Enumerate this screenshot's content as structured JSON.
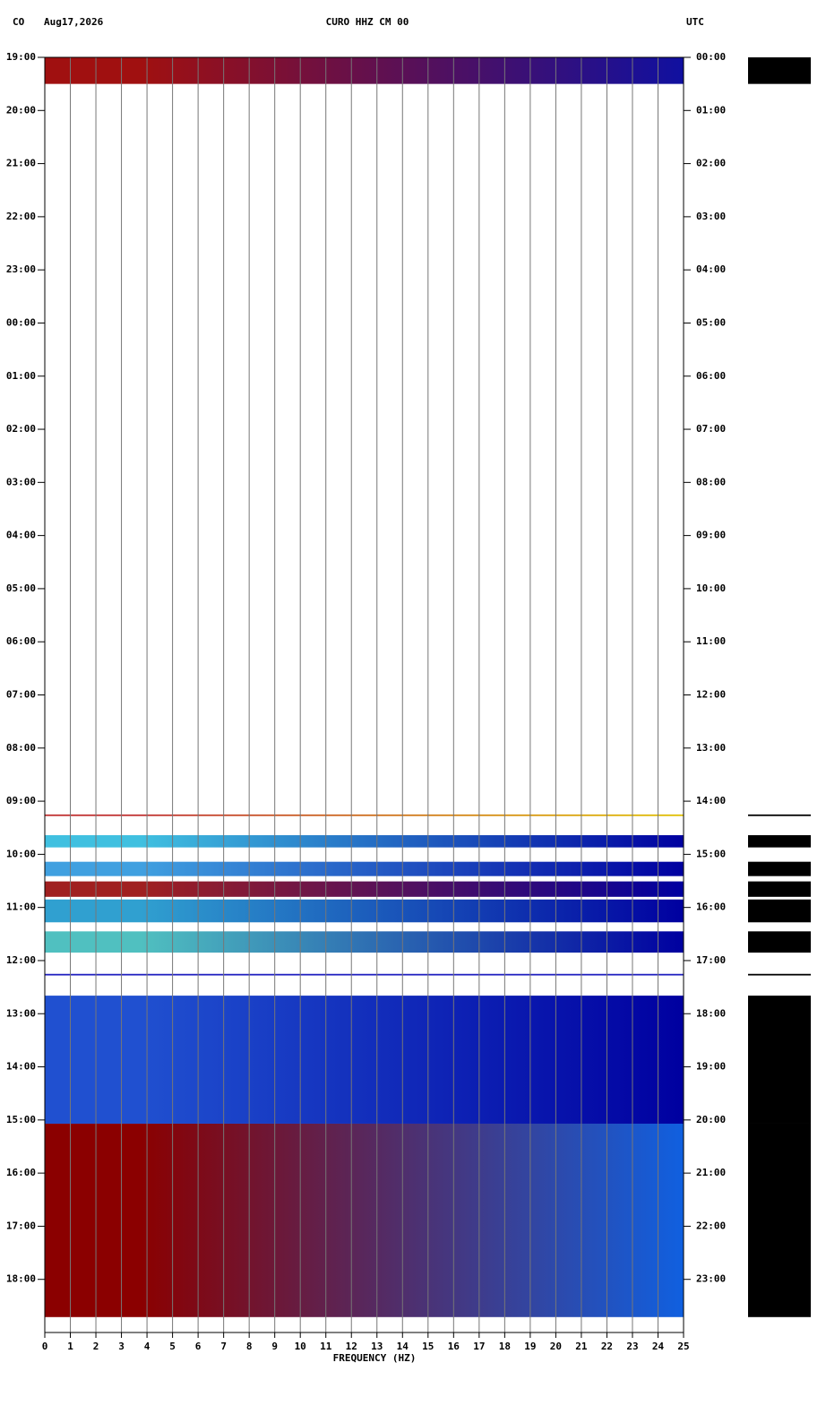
{
  "chart_data": {
    "type": "spectrogram",
    "network": "CO",
    "date": "Aug17,2026",
    "title": "CURO HHZ CM 00",
    "timezone": "UTC",
    "xlabel": "FREQUENCY (HZ)",
    "xlim": [
      0,
      25
    ],
    "xticks": [
      0,
      1,
      2,
      3,
      4,
      5,
      6,
      7,
      8,
      9,
      10,
      11,
      12,
      13,
      14,
      15,
      16,
      17,
      18,
      19,
      20,
      21,
      22,
      23,
      24,
      25
    ],
    "ylim": [
      0,
      24
    ],
    "yticks": [
      {
        "value": 0,
        "label": "19:00"
      },
      {
        "value": 1,
        "label": "20:00"
      },
      {
        "value": 2,
        "label": "21:00"
      },
      {
        "value": 3,
        "label": "22:00"
      },
      {
        "value": 4,
        "label": "23:00"
      },
      {
        "value": 5,
        "label": "00:00"
      },
      {
        "value": 6,
        "label": "01:00"
      },
      {
        "value": 7,
        "label": "02:00"
      },
      {
        "value": 8,
        "label": "03:00"
      },
      {
        "value": 9,
        "label": "04:00"
      },
      {
        "value": 10,
        "label": "05:00"
      },
      {
        "value": 11,
        "label": "06:00"
      },
      {
        "value": 12,
        "label": "07:00"
      },
      {
        "value": 13,
        "label": "08:00"
      },
      {
        "value": 14,
        "label": "09:00"
      },
      {
        "value": 15,
        "label": "10:00"
      },
      {
        "value": 16,
        "label": "11:00"
      },
      {
        "value": 17,
        "label": "12:00"
      },
      {
        "value": 18,
        "label": "13:00"
      },
      {
        "value": 19,
        "label": "14:00"
      },
      {
        "value": 20,
        "label": "15:00"
      },
      {
        "value": 21,
        "label": "16:00"
      },
      {
        "value": 22,
        "label": "17:00"
      },
      {
        "value": 23,
        "label": "18:00"
      }
    ],
    "y2lim": [
      0,
      24
    ],
    "y2ticks": [
      {
        "value": 0,
        "label": "00:00"
      },
      {
        "value": 1,
        "label": "01:00"
      },
      {
        "value": 2,
        "label": "02:00"
      },
      {
        "value": 3,
        "label": "03:00"
      },
      {
        "value": 4,
        "label": "04:00"
      },
      {
        "value": 5,
        "label": "05:00"
      },
      {
        "value": 6,
        "label": "06:00"
      },
      {
        "value": 7,
        "label": "07:00"
      },
      {
        "value": 8,
        "label": "08:00"
      },
      {
        "value": 9,
        "label": "09:00"
      },
      {
        "value": 10,
        "label": "10:00"
      },
      {
        "value": 11,
        "label": "11:00"
      },
      {
        "value": 12,
        "label": "12:00"
      },
      {
        "value": 13,
        "label": "13:00"
      },
      {
        "value": 14,
        "label": "14:00"
      },
      {
        "value": 15,
        "label": "15:00"
      },
      {
        "value": 16,
        "label": "16:00"
      },
      {
        "value": 17,
        "label": "17:00"
      },
      {
        "value": 18,
        "label": "18:00"
      },
      {
        "value": 19,
        "label": "19:00"
      },
      {
        "value": 20,
        "label": "20:00"
      },
      {
        "value": 21,
        "label": "21:00"
      },
      {
        "value": 22,
        "label": "22:00"
      },
      {
        "value": 23,
        "label": "23:00"
      }
    ],
    "grid": true,
    "segments": [
      {
        "start": 0,
        "end": 0.5,
        "colors": [
          "#a01010",
          "#1010a0"
        ]
      },
      {
        "start": 14.25,
        "end": 14.28,
        "colors": [
          "#c03030",
          "#e0c000"
        ]
      },
      {
        "start": 14.64,
        "end": 14.87,
        "colors": [
          "#40c0e0",
          "#0000a0"
        ]
      },
      {
        "start": 15.14,
        "end": 15.41,
        "colors": [
          "#40a0e0",
          "#0000a0"
        ]
      },
      {
        "start": 15.51,
        "end": 15.8,
        "colors": [
          "#a02020",
          "#0000a0"
        ]
      },
      {
        "start": 15.85,
        "end": 16.28,
        "colors": [
          "#30a0d0",
          "#0000a0"
        ]
      },
      {
        "start": 16.45,
        "end": 16.85,
        "colors": [
          "#50c0c0",
          "#0000a0"
        ]
      },
      {
        "start": 17.25,
        "end": 17.28,
        "colors": [
          "#2020c0",
          "#2020c0"
        ]
      },
      {
        "start": 17.66,
        "end": 20.07,
        "colors": [
          "#2050d0",
          "#0000a0"
        ]
      },
      {
        "start": 20.07,
        "end": 23.71,
        "colors": [
          "#8b0000",
          "#1060e0"
        ]
      }
    ]
  }
}
